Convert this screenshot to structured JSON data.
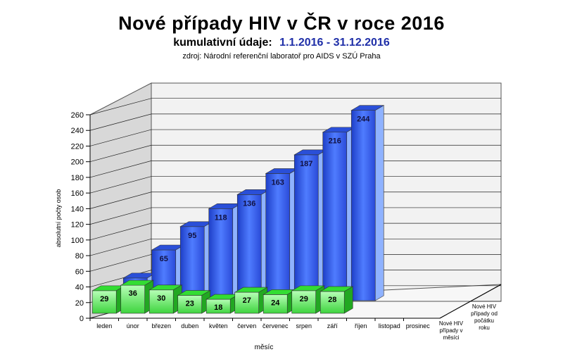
{
  "title": "Nové případy HIV v ČR v roce 2016",
  "subtitle_label": "kumulativní údaje:",
  "subtitle_dates": "1.1.2016 - 31.12.2016",
  "source": "zdroj:  Národní  referenční  laboratoř  pro AIDS v SZÚ  Praha",
  "chart_data": {
    "type": "bar",
    "title": "Nové případy HIV v ČR v roce 2016",
    "xlabel": "měsíc",
    "ylabel": "absolutní počty osob",
    "ylim": [
      0,
      260
    ],
    "yticks": [
      0,
      20,
      40,
      60,
      80,
      100,
      120,
      140,
      160,
      180,
      200,
      220,
      240,
      260
    ],
    "grid": true,
    "categories": [
      "leden",
      "únor",
      "březen",
      "duben",
      "květen",
      "červen",
      "červenec",
      "srpen",
      "září",
      "říjen",
      "listopad",
      "prosinec"
    ],
    "series": [
      {
        "name": "Nové HIV případy v měsíci",
        "color": "#33cc33",
        "values": [
          29,
          36,
          30,
          23,
          18,
          27,
          24,
          29,
          28,
          null,
          null,
          null
        ]
      },
      {
        "name": "Nové HIV případy od počátku roku",
        "color": "#2b55e8",
        "values": [
          29,
          65,
          95,
          118,
          136,
          163,
          187,
          216,
          244,
          null,
          null,
          null
        ]
      }
    ]
  },
  "colors": {
    "wall": "#f2f2f2",
    "side_wall": "#d8d8d8",
    "grid": "#222222",
    "monthly_front": "#8ff08f",
    "monthly_top": "#33dd33",
    "monthly_side": "#22a822",
    "cumulative_front": "#3a64ee",
    "cumulative_top": "#2a4fd8",
    "cumulative_side": "#8fb2ff"
  }
}
